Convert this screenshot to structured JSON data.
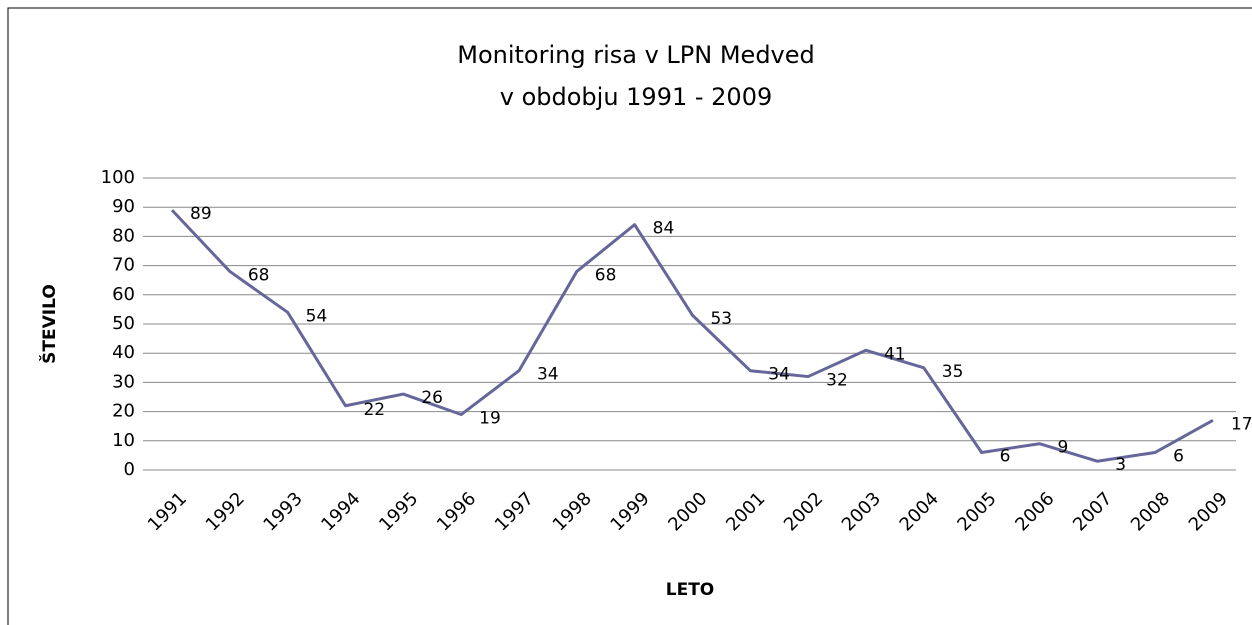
{
  "chart_data": {
    "type": "line",
    "title": "Monitoring risa v LPN Medved",
    "subtitle": "v obdobju 1991 - 2009",
    "x_label": "LETO",
    "y_label": "ŠTEVILO",
    "categories": [
      "1991",
      "1992",
      "1993",
      "1994",
      "1995",
      "1996",
      "1997",
      "1998",
      "1999",
      "2000",
      "2001",
      "2002",
      "2003",
      "2004",
      "2005",
      "2006",
      "2007",
      "2008",
      "2009"
    ],
    "values": [
      89,
      68,
      54,
      22,
      26,
      19,
      34,
      68,
      84,
      53,
      34,
      32,
      41,
      35,
      6,
      9,
      3,
      6,
      17
    ],
    "color": "#66669a",
    "ylim": [
      0,
      100
    ],
    "yticks": [
      0,
      10,
      20,
      30,
      40,
      50,
      60,
      70,
      80,
      90,
      100
    ],
    "grid": true
  }
}
